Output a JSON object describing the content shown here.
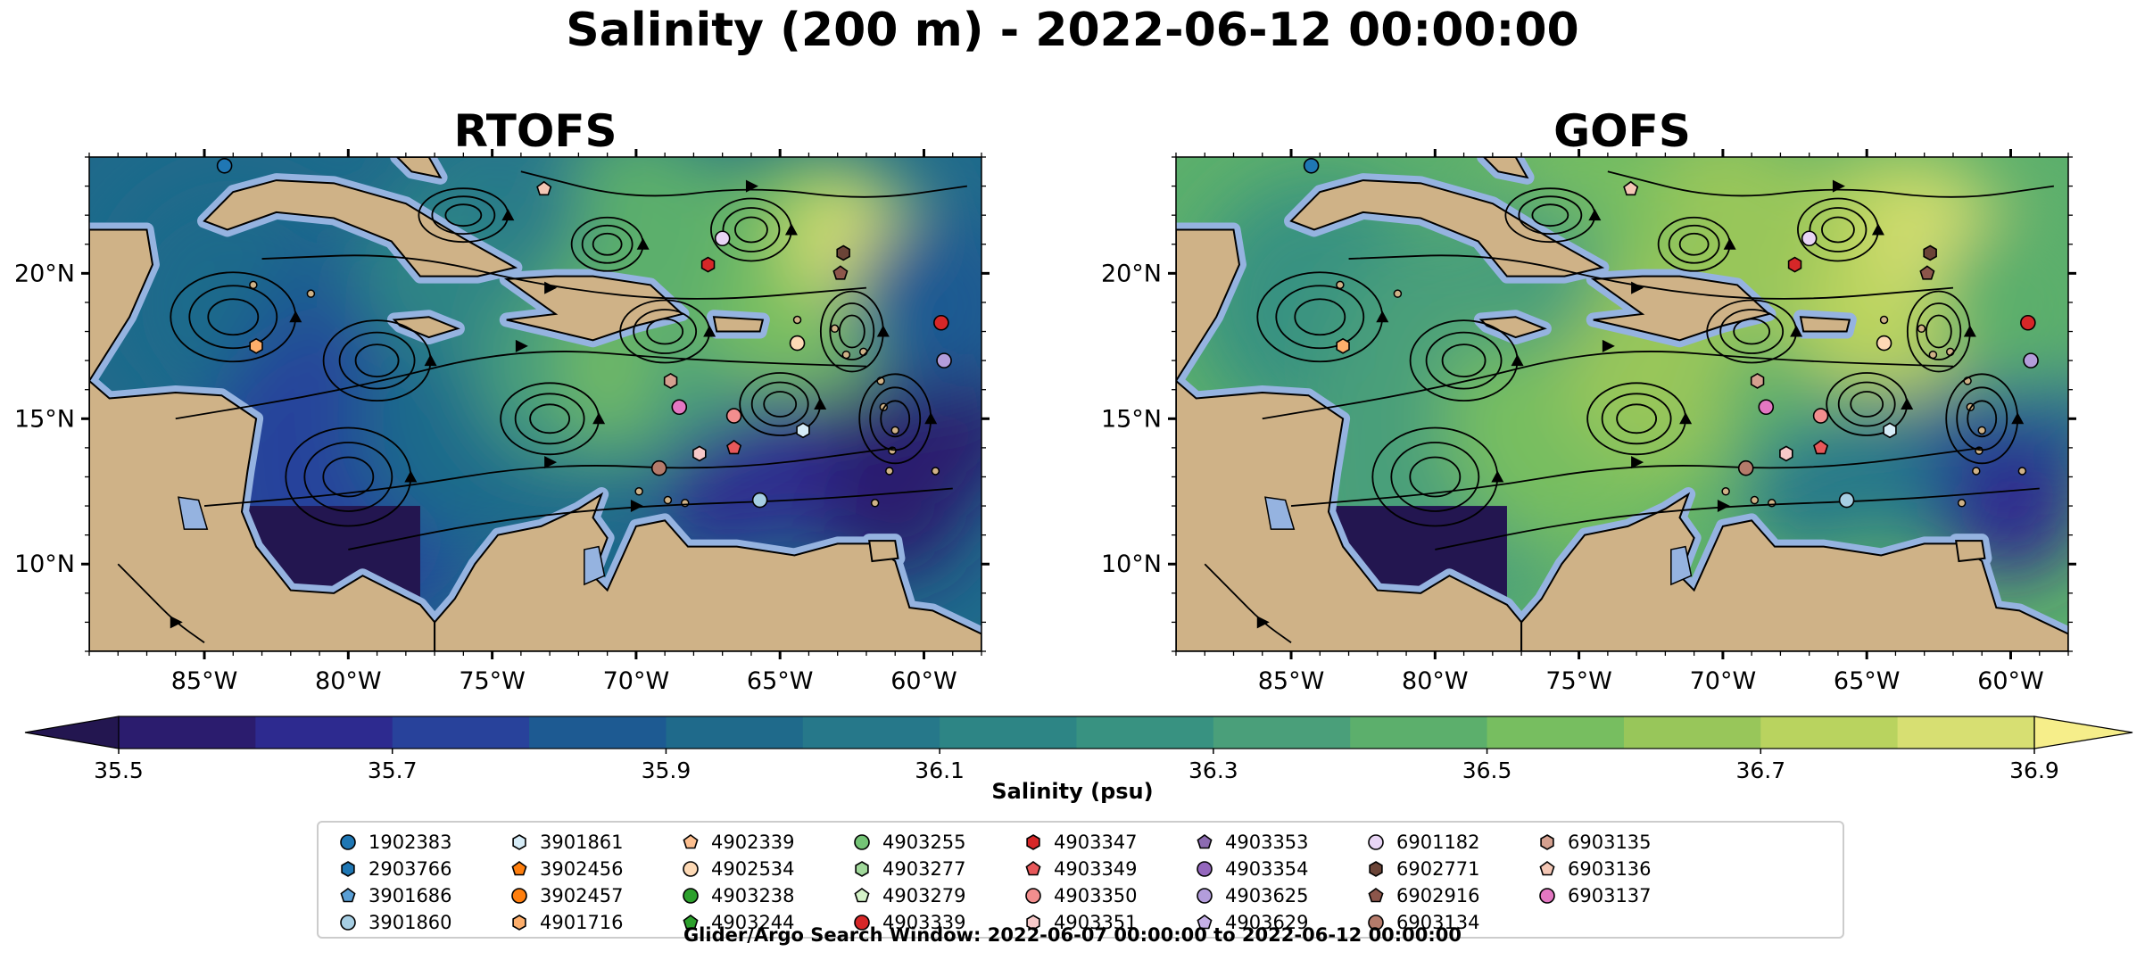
{
  "title": "Salinity (200 m) - 2022-06-12 00:00:00",
  "panels": [
    {
      "id": "rtofs",
      "title": "RTOFS"
    },
    {
      "id": "gofs",
      "title": "GOFS"
    }
  ],
  "chart_data": {
    "type": "heatmap",
    "title": "Salinity (200 m) - 2022-06-12 00:00:00",
    "lon_range": [
      -89,
      -58
    ],
    "lat_range": [
      7,
      24
    ],
    "lon_ticks": [
      "85°W",
      "80°W",
      "75°W",
      "70°W",
      "65°W",
      "60°W"
    ],
    "lat_ticks": [
      "20°N",
      "15°N",
      "10°N"
    ],
    "colorbar": {
      "label": "Salinity (psu)",
      "min": 35.5,
      "max": 36.9,
      "step": 0.1,
      "extend": "both",
      "tick_labels": [
        "35.5",
        "35.7",
        "35.9",
        "36.1",
        "36.3",
        "36.5",
        "36.7",
        "36.9"
      ],
      "colors": [
        "#2b1c6e",
        "#2d2a8f",
        "#28429b",
        "#1d5a92",
        "#1f6a8b",
        "#26788a",
        "#2d8585",
        "#389281",
        "#4a9f7a",
        "#5caf6c",
        "#77be60",
        "#98c65a",
        "#b9d35f",
        "#d7df72"
      ],
      "under_color": "#231650",
      "over_color": "#f6ee8a"
    },
    "floats": {
      "1902383": {
        "lon": -84.3,
        "lat": 23.7
      },
      "6903136": {
        "lon": -73.2,
        "lat": 22.9
      },
      "6901182": {
        "lon": -67.0,
        "lat": 21.2
      },
      "4903347": {
        "lon": -67.5,
        "lat": 20.3
      },
      "6902771": {
        "lon": -62.8,
        "lat": 20.7
      },
      "6902916": {
        "lon": -62.9,
        "lat": 20.0
      },
      "4903339": {
        "lon": -59.4,
        "lat": 18.3
      },
      "4903625": {
        "lon": -59.3,
        "lat": 17.0
      },
      "4902534": {
        "lon": -64.4,
        "lat": 17.6
      },
      "4901716": {
        "lon": -83.2,
        "lat": 17.5
      },
      "6903135": {
        "lon": -68.8,
        "lat": 16.3
      },
      "6903137": {
        "lon": -68.5,
        "lat": 15.4
      },
      "4903350": {
        "lon": -66.6,
        "lat": 15.1
      },
      "3901861": {
        "lon": -64.2,
        "lat": 14.6
      },
      "4903349": {
        "lon": -66.6,
        "lat": 14.0
      },
      "4903351": {
        "lon": -67.8,
        "lat": 13.8
      },
      "6903134": {
        "lon": -69.2,
        "lat": 13.3
      },
      "3901860": {
        "lon": -65.7,
        "lat": 12.2
      }
    },
    "legend": [
      {
        "id": "1902383",
        "marker": "circle",
        "color": "#1f77b4"
      },
      {
        "id": "2903766",
        "marker": "hexagon",
        "color": "#1f77b4"
      },
      {
        "id": "3901686",
        "marker": "pentagon",
        "color": "#5a9fd6"
      },
      {
        "id": "3901860",
        "marker": "circle",
        "color": "#a6cee3"
      },
      {
        "id": "3901861",
        "marker": "hexagon",
        "color": "#d6ecf7"
      },
      {
        "id": "3902456",
        "marker": "pentagon",
        "color": "#ff7f0e"
      },
      {
        "id": "3902457",
        "marker": "circle",
        "color": "#ff7f0e"
      },
      {
        "id": "4901716",
        "marker": "hexagon",
        "color": "#fdae6b"
      },
      {
        "id": "4902339",
        "marker": "pentagon",
        "color": "#fdbf8f"
      },
      {
        "id": "4902534",
        "marker": "circle",
        "color": "#fdd9b5"
      },
      {
        "id": "4903238",
        "marker": "circle",
        "color": "#2ca02c"
      },
      {
        "id": "4903244",
        "marker": "pentagon",
        "color": "#2ca02c"
      },
      {
        "id": "4903255",
        "marker": "circle",
        "color": "#74c476"
      },
      {
        "id": "4903277",
        "marker": "hexagon",
        "color": "#a1d99b"
      },
      {
        "id": "4903279",
        "marker": "pentagon",
        "color": "#d4f2c8"
      },
      {
        "id": "4903339",
        "marker": "circle",
        "color": "#d62728"
      },
      {
        "id": "4903347",
        "marker": "hexagon",
        "color": "#d62728"
      },
      {
        "id": "4903349",
        "marker": "pentagon",
        "color": "#e8585a"
      },
      {
        "id": "4903350",
        "marker": "circle",
        "color": "#f28e8e"
      },
      {
        "id": "4903351",
        "marker": "hexagon",
        "color": "#f7c9c9"
      },
      {
        "id": "4903353",
        "marker": "pentagon",
        "color": "#8c6bb1"
      },
      {
        "id": "4903354",
        "marker": "circle",
        "color": "#9467bd"
      },
      {
        "id": "4903625",
        "marker": "circle",
        "color": "#b39ddb"
      },
      {
        "id": "4903629",
        "marker": "pentagon",
        "color": "#c5b0e6"
      },
      {
        "id": "6901182",
        "marker": "circle",
        "color": "#e8d5f5"
      },
      {
        "id": "6902771",
        "marker": "hexagon",
        "color": "#6b4437"
      },
      {
        "id": "6902916",
        "marker": "pentagon",
        "color": "#8c564b"
      },
      {
        "id": "6903134",
        "marker": "circle",
        "color": "#b57b6b"
      },
      {
        "id": "6903135",
        "marker": "hexagon",
        "color": "#d4a08f"
      },
      {
        "id": "6903136",
        "marker": "pentagon",
        "color": "#f4c7b5"
      },
      {
        "id": "6903137",
        "marker": "circle",
        "color": "#e377c2"
      }
    ]
  },
  "search_window": "Glider/Argo Search Window: 2022-06-07 00:00:00 to 2022-06-12 00:00:00"
}
